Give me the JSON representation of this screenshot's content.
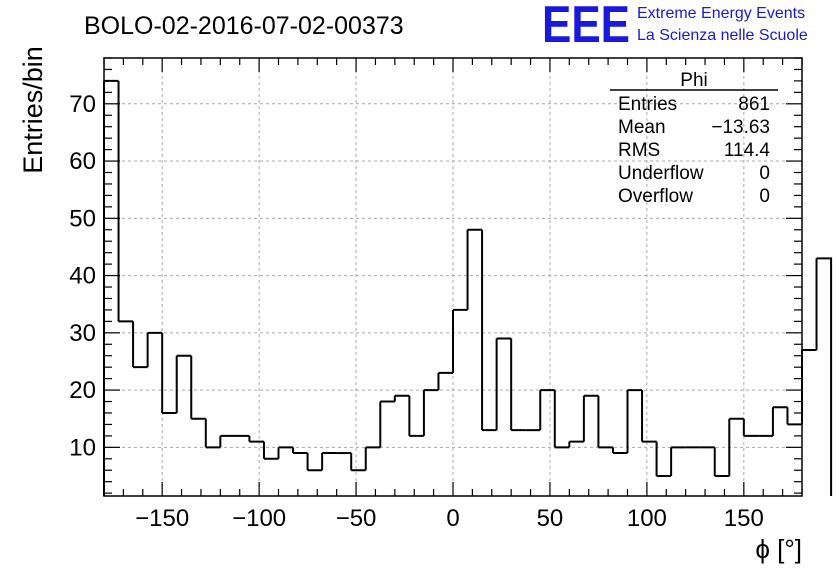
{
  "header": {
    "run_title": "BOLO-02-2016-07-02-00373",
    "logo_mark": "EEE",
    "logo_line1": "Extreme Energy Events",
    "logo_line2": "La Scienza nelle Scuole",
    "logo_color": "#1818e0"
  },
  "stats": {
    "title": "Phi",
    "rows": [
      {
        "label": "Entries",
        "value": "861"
      },
      {
        "label": "Mean",
        "value": "−13.63"
      },
      {
        "label": "RMS",
        "value": "114.4"
      },
      {
        "label": "Underflow",
        "value": "0"
      },
      {
        "label": "Overflow",
        "value": "0"
      }
    ]
  },
  "chart_data": {
    "type": "histogram",
    "title": "BOLO-02-2016-07-02-00373",
    "xlabel": "ϕ [°]",
    "ylabel": "Entries/bin",
    "xlim": [
      -180,
      180
    ],
    "ylim": [
      1.5,
      78
    ],
    "bin_width": 7.5,
    "bin_edges_start": -180,
    "values": [
      74,
      32,
      24,
      30,
      16,
      26,
      15,
      10,
      12,
      12,
      11,
      8,
      10,
      9,
      6,
      9,
      9,
      6,
      10,
      18,
      19,
      12,
      20,
      23,
      34,
      48,
      13,
      29,
      13,
      13,
      20,
      10,
      11,
      19,
      10,
      9,
      20,
      11,
      5,
      10,
      10,
      10,
      5,
      15,
      12,
      12,
      17,
      14,
      27,
      43
    ],
    "xticks": [
      -150,
      -100,
      -50,
      0,
      50,
      100,
      150
    ],
    "xtick_labels": [
      "−150",
      "−100",
      "−50",
      "0",
      "50",
      "100",
      "150"
    ],
    "yticks": [
      10,
      20,
      30,
      40,
      50,
      60,
      70
    ],
    "ytick_labels": [
      "10",
      "20",
      "30",
      "40",
      "50",
      "60",
      "70"
    ],
    "grid": true,
    "line_color": "#000000"
  }
}
